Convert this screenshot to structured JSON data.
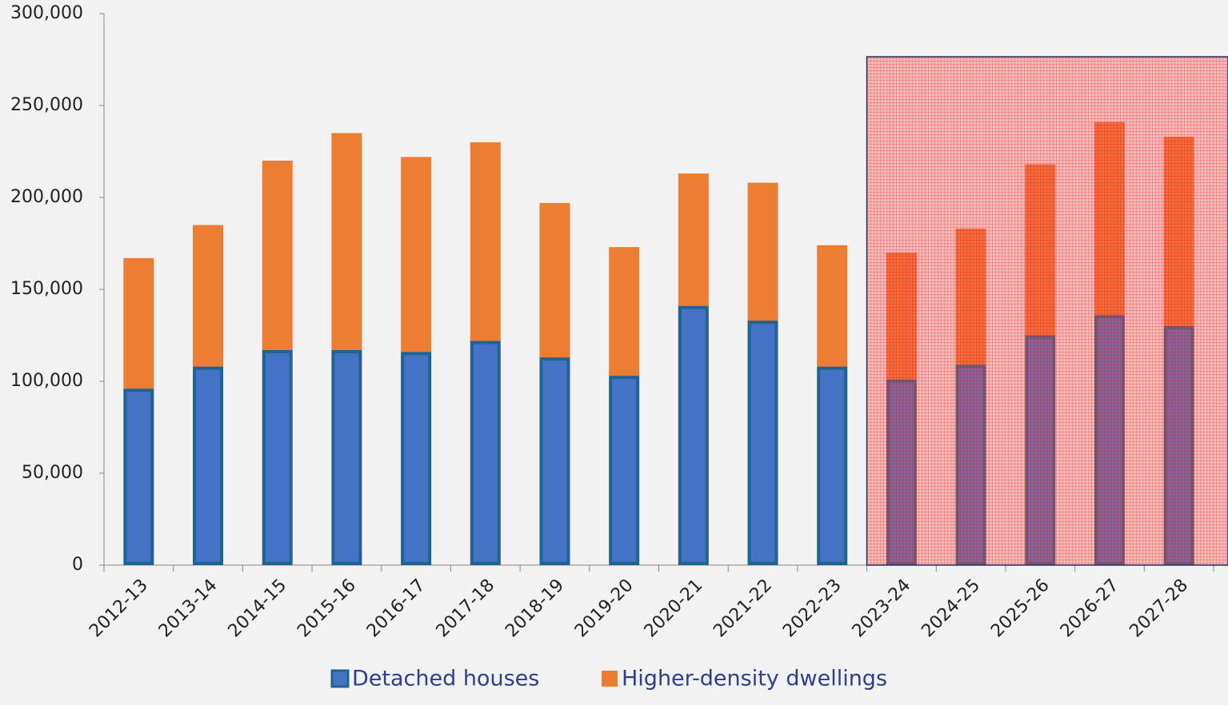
{
  "chart_data": {
    "type": "stacked_bar",
    "categories": [
      "2012-13",
      "2013-14",
      "2014-15",
      "2015-16",
      "2016-17",
      "2017-18",
      "2018-19",
      "2019-20",
      "2020-21",
      "2021-22",
      "2022-23",
      "2023-24",
      "2024-25",
      "2025-26",
      "2026-27",
      "2027-28"
    ],
    "series": [
      {
        "name": "Detached houses",
        "color": "#4472c4",
        "edgecolor": "#1f6391",
        "values": [
          96000,
          108000,
          117000,
          117000,
          116000,
          122000,
          113000,
          103000,
          141000,
          133000,
          108000,
          101000,
          109000,
          125000,
          136000,
          130000
        ]
      },
      {
        "name": "Higher-density dwellings",
        "color": "#ed7d31",
        "values": [
          71000,
          77000,
          103000,
          118000,
          106000,
          108000,
          84000,
          70000,
          72000,
          75000,
          66000,
          69000,
          74000,
          93000,
          105000,
          103000
        ]
      }
    ],
    "ylim": [
      0,
      300000
    ],
    "yticks": [
      0,
      {
        "value": 50000,
        "label": "50,000"
      },
      {
        "value": 100000,
        "label": "100,000"
      },
      {
        "value": 150000,
        "label": "150,000"
      },
      {
        "value": 200000,
        "label": "200,000"
      },
      {
        "value": 250000,
        "label": "250,000"
      },
      {
        "value": 300000,
        "label": "300,000"
      }
    ],
    "grid": false,
    "legend": "bottom"
  }
}
